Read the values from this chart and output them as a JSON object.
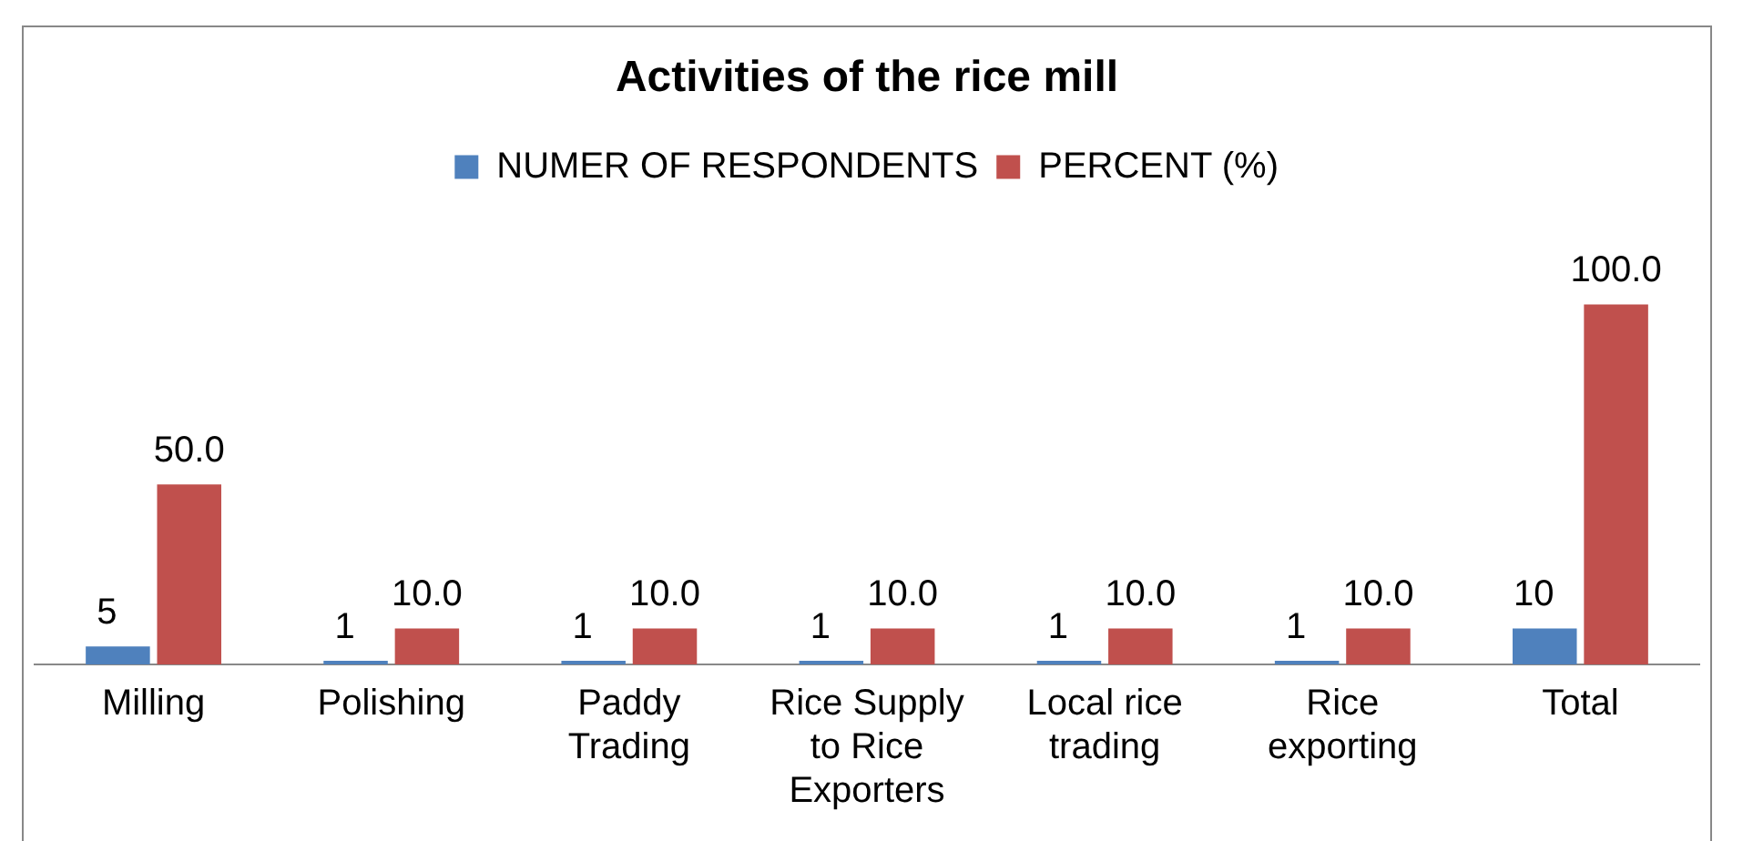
{
  "chart_data": {
    "type": "bar",
    "title": "Activities of the rice mill",
    "categories": [
      "Milling",
      "Polishing",
      "Paddy Trading",
      "Rice Supply to Rice Exporters",
      "Local rice trading",
      "Rice exporting",
      "Total"
    ],
    "series": [
      {
        "name": "NUMER OF RESPONDENTS",
        "color": "#4f81bd",
        "values": [
          5,
          1,
          1,
          1,
          1,
          1,
          10
        ]
      },
      {
        "name": "PERCENT (%)",
        "color": "#c0504d",
        "values": [
          50.0,
          10.0,
          10.0,
          10.0,
          10.0,
          10.0,
          100.0
        ],
        "value_labels": [
          "50.0",
          "10.0",
          "10.0",
          "10.0",
          "10.0",
          "10.0",
          "100.0"
        ]
      }
    ],
    "data_labels": true,
    "legend": "top",
    "grid": false
  }
}
